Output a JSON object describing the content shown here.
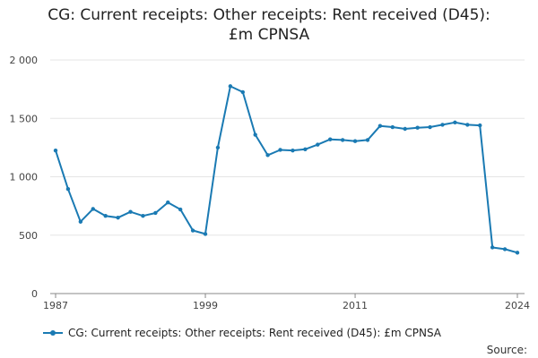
{
  "title_line1": "CG: Current receipts: Other receipts: Rent received (D45):",
  "title_line2": "£m CPNSA",
  "legend_label": "CG: Current receipts: Other receipts: Rent received (D45): £m CPNSA",
  "source_label": "Source:",
  "colors": {
    "series": "#1a7ab3",
    "grid": "#e5e5e5",
    "axis": "#888888"
  },
  "chart_data": {
    "type": "line",
    "title": "CG: Current receipts: Other receipts: Rent received (D45): £m CPNSA",
    "xlabel": "",
    "ylabel": "",
    "xlim": [
      1987,
      2024
    ],
    "ylim": [
      0,
      2000
    ],
    "yticks": [
      0,
      500,
      1000,
      1500,
      2000
    ],
    "ytick_labels": [
      "0",
      "500",
      "1 000",
      "1 500",
      "2 000"
    ],
    "xticks": [
      1987,
      1999,
      2011,
      2024
    ],
    "xtick_labels": [
      "1987",
      "1999",
      "2011",
      "2024"
    ],
    "grid": true,
    "legend_position": "bottom",
    "series": [
      {
        "name": "CG: Current receipts: Other receipts: Rent received (D45): £m CPNSA",
        "x": [
          1987,
          1988,
          1989,
          1990,
          1991,
          1992,
          1993,
          1994,
          1995,
          1996,
          1997,
          1998,
          1999,
          2000,
          2001,
          2002,
          2003,
          2004,
          2005,
          2006,
          2007,
          2008,
          2009,
          2010,
          2011,
          2012,
          2013,
          2014,
          2015,
          2016,
          2017,
          2018,
          2019,
          2020,
          2021,
          2022,
          2023,
          2024
        ],
        "values": [
          1225,
          895,
          615,
          725,
          665,
          650,
          700,
          665,
          690,
          780,
          720,
          540,
          510,
          1250,
          1775,
          1725,
          1360,
          1185,
          1230,
          1225,
          1235,
          1275,
          1320,
          1315,
          1305,
          1315,
          1435,
          1425,
          1410,
          1420,
          1425,
          1445,
          1465,
          1445,
          1440,
          395,
          380,
          350
        ]
      }
    ]
  }
}
